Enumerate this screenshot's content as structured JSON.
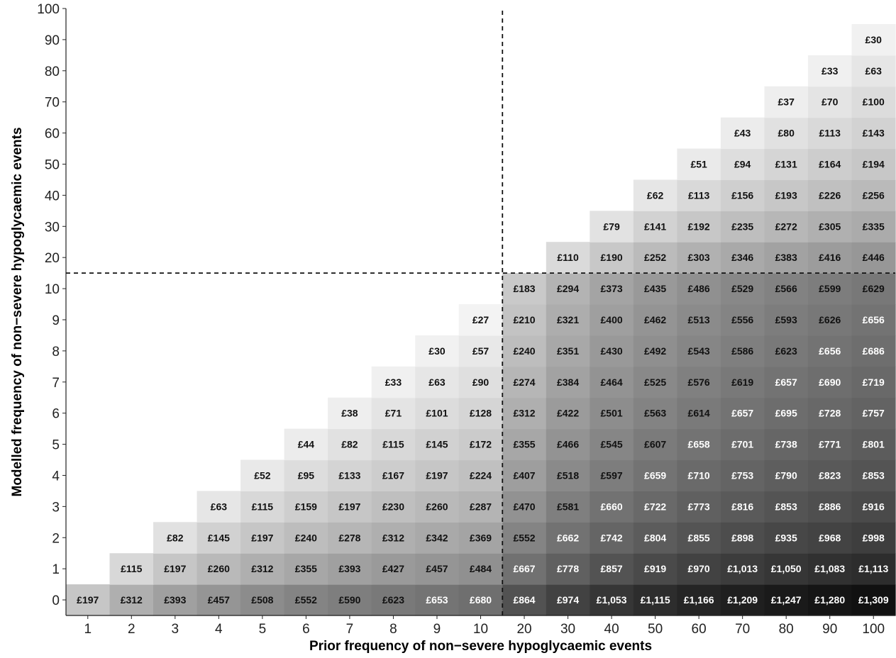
{
  "chart_data": {
    "type": "heatmap",
    "title": "",
    "xlabel": "Prior frequency of non−severe hypoglycaemic events",
    "ylabel": "Modelled frequency of non−severe hypoglycaemic events",
    "x_categories": [
      "1",
      "2",
      "3",
      "4",
      "5",
      "6",
      "7",
      "8",
      "9",
      "10",
      "20",
      "30",
      "40",
      "50",
      "60",
      "70",
      "80",
      "90",
      "100"
    ],
    "y_categories": [
      "0",
      "1",
      "2",
      "3",
      "4",
      "5",
      "6",
      "7",
      "8",
      "9",
      "10",
      "20",
      "30",
      "40",
      "50",
      "60",
      "70",
      "80",
      "90",
      "100"
    ],
    "cells": [
      [
        "£197",
        "£312",
        "£393",
        "£457",
        "£508",
        "£552",
        "£590",
        "£623",
        "£653",
        "£680",
        "£864",
        "£974",
        "£1,053",
        "£1,115",
        "£1,166",
        "£1,209",
        "£1,247",
        "£1,280",
        "£1,309"
      ],
      [
        null,
        "£115",
        "£197",
        "£260",
        "£312",
        "£355",
        "£393",
        "£427",
        "£457",
        "£484",
        "£667",
        "£778",
        "£857",
        "£919",
        "£970",
        "£1,013",
        "£1,050",
        "£1,083",
        "£1,113"
      ],
      [
        null,
        null,
        "£82",
        "£145",
        "£197",
        "£240",
        "£278",
        "£312",
        "£342",
        "£369",
        "£552",
        "£662",
        "£742",
        "£804",
        "£855",
        "£898",
        "£935",
        "£968",
        "£998"
      ],
      [
        null,
        null,
        null,
        "£63",
        "£115",
        "£159",
        "£197",
        "£230",
        "£260",
        "£287",
        "£470",
        "£581",
        "£660",
        "£722",
        "£773",
        "£816",
        "£853",
        "£886",
        "£916"
      ],
      [
        null,
        null,
        null,
        null,
        "£52",
        "£95",
        "£133",
        "£167",
        "£197",
        "£224",
        "£407",
        "£518",
        "£597",
        "£659",
        "£710",
        "£753",
        "£790",
        "£823",
        "£853"
      ],
      [
        null,
        null,
        null,
        null,
        null,
        "£44",
        "£82",
        "£115",
        "£145",
        "£172",
        "£355",
        "£466",
        "£545",
        "£607",
        "£658",
        "£701",
        "£738",
        "£771",
        "£801"
      ],
      [
        null,
        null,
        null,
        null,
        null,
        null,
        "£38",
        "£71",
        "£101",
        "£128",
        "£312",
        "£422",
        "£501",
        "£563",
        "£614",
        "£657",
        "£695",
        "£728",
        "£757"
      ],
      [
        null,
        null,
        null,
        null,
        null,
        null,
        null,
        "£33",
        "£63",
        "£90",
        "£274",
        "£384",
        "£464",
        "£525",
        "£576",
        "£619",
        "£657",
        "£690",
        "£719"
      ],
      [
        null,
        null,
        null,
        null,
        null,
        null,
        null,
        null,
        "£30",
        "£57",
        "£240",
        "£351",
        "£430",
        "£492",
        "£543",
        "£586",
        "£623",
        "£656",
        "£686"
      ],
      [
        null,
        null,
        null,
        null,
        null,
        null,
        null,
        null,
        null,
        "£27",
        "£210",
        "£321",
        "£400",
        "£462",
        "£513",
        "£556",
        "£593",
        "£626",
        "£656"
      ],
      [
        null,
        null,
        null,
        null,
        null,
        null,
        null,
        null,
        null,
        null,
        "£183",
        "£294",
        "£373",
        "£435",
        "£486",
        "£529",
        "£566",
        "£599",
        "£629"
      ],
      [
        null,
        null,
        null,
        null,
        null,
        null,
        null,
        null,
        null,
        null,
        null,
        "£110",
        "£190",
        "£252",
        "£303",
        "£346",
        "£383",
        "£416",
        "£446"
      ],
      [
        null,
        null,
        null,
        null,
        null,
        null,
        null,
        null,
        null,
        null,
        null,
        null,
        "£79",
        "£141",
        "£192",
        "£235",
        "£272",
        "£305",
        "£335"
      ],
      [
        null,
        null,
        null,
        null,
        null,
        null,
        null,
        null,
        null,
        null,
        null,
        null,
        null,
        "£62",
        "£113",
        "£156",
        "£193",
        "£226",
        "£256"
      ],
      [
        null,
        null,
        null,
        null,
        null,
        null,
        null,
        null,
        null,
        null,
        null,
        null,
        null,
        null,
        "£51",
        "£94",
        "£131",
        "£164",
        "£194"
      ],
      [
        null,
        null,
        null,
        null,
        null,
        null,
        null,
        null,
        null,
        null,
        null,
        null,
        null,
        null,
        null,
        "£43",
        "£80",
        "£113",
        "£143"
      ],
      [
        null,
        null,
        null,
        null,
        null,
        null,
        null,
        null,
        null,
        null,
        null,
        null,
        null,
        null,
        null,
        null,
        "£37",
        "£70",
        "£100"
      ],
      [
        null,
        null,
        null,
        null,
        null,
        null,
        null,
        null,
        null,
        null,
        null,
        null,
        null,
        null,
        null,
        null,
        null,
        "£33",
        "£63"
      ],
      [
        null,
        null,
        null,
        null,
        null,
        null,
        null,
        null,
        null,
        null,
        null,
        null,
        null,
        null,
        null,
        null,
        null,
        null,
        "£30"
      ],
      [
        null,
        null,
        null,
        null,
        null,
        null,
        null,
        null,
        null,
        null,
        null,
        null,
        null,
        null,
        null,
        null,
        null,
        null,
        null
      ]
    ],
    "color_scale": {
      "low": "#f3f3f3",
      "high": "#111111",
      "min_value": 27,
      "max_value": 1309
    },
    "reference_lines": {
      "vertical": "between 10 and 20",
      "horizontal": "between 10 and 20",
      "style": "dashed"
    },
    "grid": false,
    "legend": "none"
  }
}
